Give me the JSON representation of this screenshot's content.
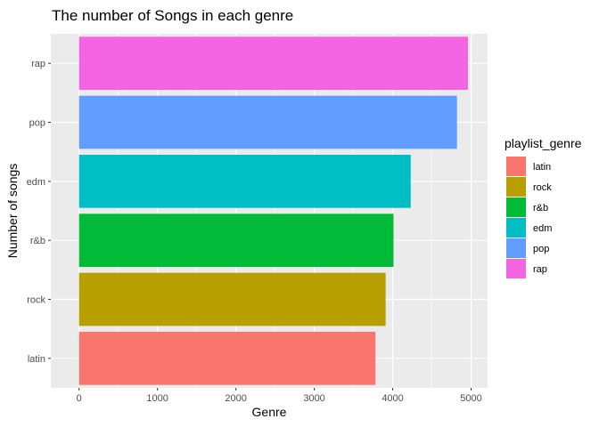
{
  "chart_data": {
    "type": "bar",
    "orientation": "horizontal",
    "title": "The number of Songs in each genre",
    "xlabel": "Genre",
    "ylabel": "Number of songs",
    "categories": [
      "latin",
      "rock",
      "r&b",
      "edm",
      "pop",
      "rap"
    ],
    "values": [
      3780,
      3910,
      4010,
      4230,
      4820,
      4960
    ],
    "xlim": [
      -360,
      5210
    ],
    "xticks": [
      0,
      1000,
      2000,
      3000,
      4000,
      5000
    ],
    "grid": true,
    "legend": {
      "title": "playlist_genre",
      "placement": "right",
      "entries": [
        "latin",
        "rock",
        "r&b",
        "edm",
        "pop",
        "rap"
      ]
    },
    "colors": {
      "latin": "#F8766D",
      "rock": "#B79F00",
      "r&b": "#00BA38",
      "edm": "#00BFC4",
      "pop": "#619CFF",
      "rap": "#F564E3"
    },
    "panel_background": "#EBEBEB"
  }
}
